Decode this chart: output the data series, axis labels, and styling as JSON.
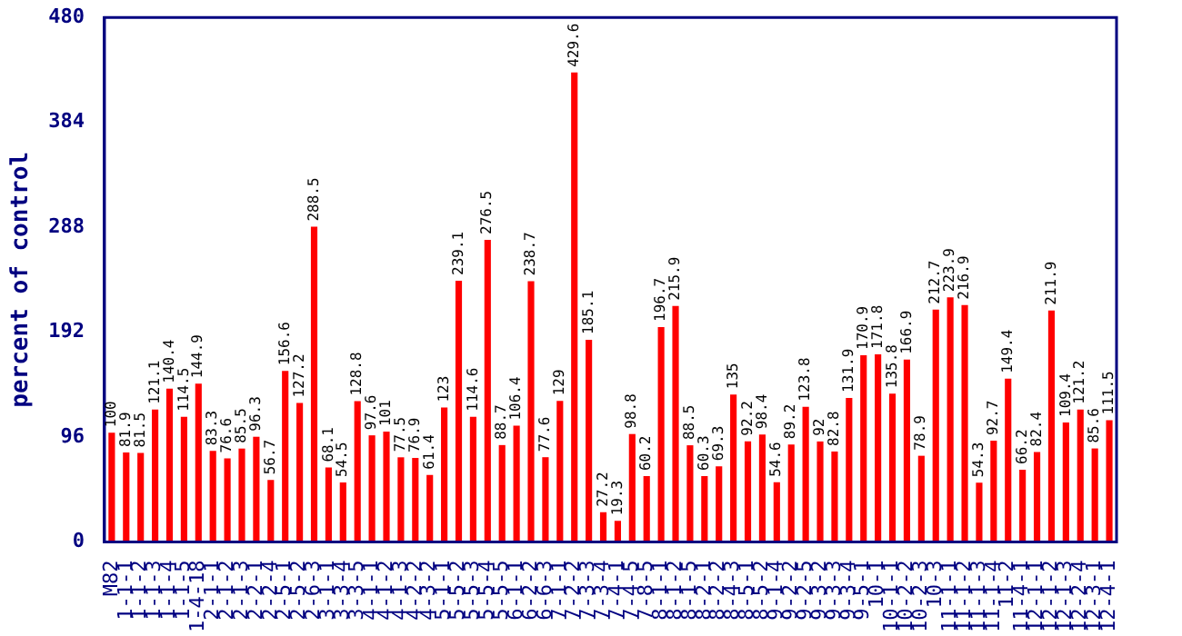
{
  "chart_data": {
    "type": "bar",
    "ylabel": "percent of control",
    "categories": [
      "M82",
      "1-1-1",
      "1-1-2",
      "1-1-3",
      "1-1-4",
      "1-1-5",
      "1-4-18",
      "2-1-1",
      "2-1-2",
      "2-1-3",
      "2-2-1",
      "2-2-4",
      "2-5-1",
      "2-5-2",
      "2-6-3",
      "3-1-1",
      "3-3-4",
      "3-3-5",
      "4-1-1",
      "4-1-2",
      "4-1-3",
      "4-2-2",
      "4-3-2",
      "5-1-1",
      "5-5-2",
      "5-5-3",
      "5-5-4",
      "5-5-5",
      "6-1-1",
      "6-2-2",
      "6-6-3",
      "7-1-1",
      "7-2-2",
      "7-3-3",
      "7-3-4",
      "7-4-1",
      "7-4-5",
      "7-8-5",
      "8-1-1",
      "8-1-2",
      "8-1-5",
      "8-2-1",
      "8-2-2",
      "8-4-3",
      "8-5-1",
      "8-5-2",
      "9-1-4",
      "9-2-2",
      "9-2-5",
      "9-3-2",
      "9-3-3",
      "9-3-4",
      "9-5-1",
      "10-1",
      "10-1-1",
      "10-2-2",
      "10-2-3",
      "10-3",
      "11-1-1",
      "11-1-2",
      "11-1-3",
      "11-1-4",
      "11-2",
      "11-4-1",
      "12-1-1",
      "12-1-2",
      "12-1-3",
      "12-2-4",
      "12-3-1",
      "12-4-1"
    ],
    "values": [
      100,
      81.9,
      81.5,
      121.1,
      140.4,
      114.5,
      144.9,
      83.3,
      76.6,
      85.5,
      96.3,
      56.7,
      156.6,
      127.2,
      288.5,
      68.1,
      54.5,
      128.8,
      97.6,
      101,
      77.5,
      76.9,
      61.4,
      123,
      239.1,
      114.6,
      276.5,
      88.7,
      106.4,
      238.7,
      77.6,
      129,
      429.6,
      185.1,
      27.2,
      19.3,
      98.8,
      60.2,
      196.7,
      215.9,
      88.5,
      60.3,
      69.3,
      135,
      92.2,
      98.4,
      54.6,
      89.2,
      123.8,
      92,
      82.8,
      131.9,
      170.9,
      171.8,
      135.8,
      166.9,
      78.9,
      212.7,
      223.9,
      216.9,
      54.3,
      92.7,
      149.4,
      66.2,
      82.4,
      211.9,
      109.4,
      121.2,
      85.6,
      111.5
    ],
    "color": "#ff0000",
    "ylim": [
      0,
      480
    ],
    "yticks": [
      0,
      96,
      192,
      288,
      384,
      480
    ],
    "grid": false,
    "legend": false,
    "data_labels": true
  }
}
